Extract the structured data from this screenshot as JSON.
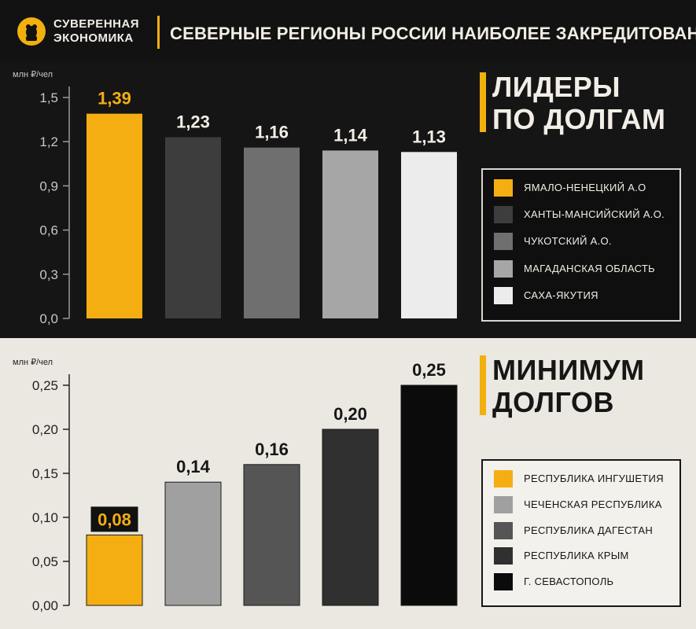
{
  "header": {
    "logo_line1": "СУВЕРЕННАЯ",
    "logo_line2": "ЭКОНОМИКА",
    "title": "СЕВЕРНЫЕ РЕГИОНЫ РОССИИ НАИБОЛЕЕ ЗАКРЕДИТОВАНЫ"
  },
  "colors": {
    "accent": "#f2b00e",
    "top_background": "#151515",
    "bottom_background": "#ebe8e1"
  },
  "top_panel": {
    "title_line1": "ЛИДЕРЫ",
    "title_line2": "ПО ДОЛГАМ",
    "legend": [
      {
        "label": "ЯМАЛО-НЕНЕЦКИЙ А.О",
        "color": "#f5ae12"
      },
      {
        "label": "ХАНТЫ-МАНСИЙСКИЙ А.О.",
        "color": "#3d3d3d"
      },
      {
        "label": "ЧУКОТСКИЙ А.О.",
        "color": "#6f6f6f"
      },
      {
        "label": "МАГАДАНСКАЯ ОБЛАСТЬ",
        "color": "#a6a6a6"
      },
      {
        "label": "САХА-ЯКУТИЯ",
        "color": "#ececec"
      }
    ]
  },
  "bottom_panel": {
    "title_line1": "МИНИМУМ",
    "title_line2": "ДОЛГОВ",
    "legend": [
      {
        "label": "РЕСПУБЛИКА ИНГУШЕТИЯ",
        "color": "#f5ae12"
      },
      {
        "label": "ЧЕЧЕНСКАЯ РЕСПУБЛИКА",
        "color": "#a0a0a0"
      },
      {
        "label": "РЕСПУБЛИКА ДАГЕСТАН",
        "color": "#555555"
      },
      {
        "label": "РЕСПУБЛИКА КРЫМ",
        "color": "#303030"
      },
      {
        "label": "Г. СЕВАСТОПОЛЬ",
        "color": "#0b0b0b"
      }
    ]
  },
  "chart_data": [
    {
      "type": "bar",
      "ylabel": "млн ₽/чел",
      "ylim": [
        0,
        1.5
      ],
      "yticks": [
        "0,0",
        "0,3",
        "0,6",
        "0,9",
        "1,2",
        "1,5"
      ],
      "tick_values": [
        0,
        0.3,
        0.6,
        0.9,
        1.2,
        1.5
      ],
      "categories": [
        "ЯМАЛО-НЕНЕЦКИЙ А.О",
        "ХАНТЫ-МАНСИЙСКИЙ А.О.",
        "ЧУКОТСКИЙ А.О.",
        "МАГАДАНСКАЯ ОБЛАСТЬ",
        "САХА-ЯКУТИЯ"
      ],
      "values": [
        1.39,
        1.23,
        1.16,
        1.14,
        1.13
      ],
      "value_labels": [
        "1,39",
        "1,23",
        "1,16",
        "1,14",
        "1,13"
      ],
      "colors": [
        "#f5ae12",
        "#3d3d3d",
        "#6f6f6f",
        "#a6a6a6",
        "#ececec"
      ],
      "legend_position": "right"
    },
    {
      "type": "bar",
      "ylabel": "млн ₽/чел",
      "ylim": [
        0,
        0.25
      ],
      "yticks": [
        "0,00",
        "0,05",
        "0,10",
        "0,15",
        "0,20",
        "0,25"
      ],
      "tick_values": [
        0,
        0.05,
        0.1,
        0.15,
        0.2,
        0.25
      ],
      "categories": [
        "РЕСПУБЛИКА ИНГУШЕТИЯ",
        "ЧЕЧЕНСКАЯ РЕСПУБЛИКА",
        "РЕСПУБЛИКА ДАГЕСТАН",
        "РЕСПУБЛИКА КРЫМ",
        "Г. СЕВАСТОПОЛЬ"
      ],
      "values": [
        0.08,
        0.14,
        0.16,
        0.2,
        0.25
      ],
      "value_labels": [
        "0,08",
        "0,14",
        "0,16",
        "0,20",
        "0,25"
      ],
      "colors": [
        "#f5ae12",
        "#a0a0a0",
        "#555555",
        "#303030",
        "#0b0b0b"
      ],
      "legend_position": "right"
    }
  ]
}
